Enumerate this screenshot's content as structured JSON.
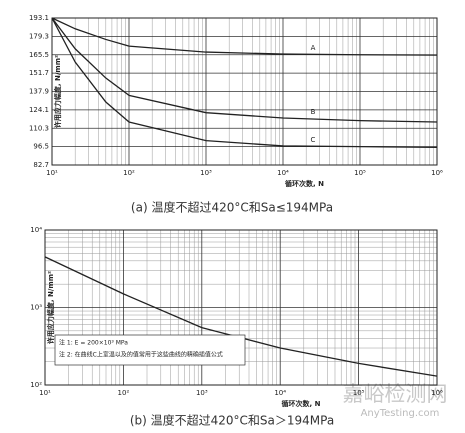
{
  "chart_data": [
    {
      "type": "line",
      "caption": "(a) 温度不超过420°C和Sa≤194MPa",
      "x_label": "循环次数, N",
      "y_label": "许用应力幅度, N/mm²",
      "x": [
        10,
        20,
        50,
        100,
        1000,
        10000,
        100000,
        1000000
      ],
      "series": [
        {
          "name": "A",
          "color": "#222222",
          "values": [
            193.1,
            185,
            177,
            172,
            167.5,
            166,
            165.5,
            165.2
          ]
        },
        {
          "name": "B",
          "color": "#222222",
          "values": [
            193.1,
            170,
            148,
            135,
            122,
            118,
            116,
            115
          ]
        },
        {
          "name": "C",
          "color": "#222222",
          "values": [
            193.1,
            160,
            130,
            115,
            101,
            97,
            96.5,
            96
          ]
        }
      ],
      "xlim": [
        10,
        1000000
      ],
      "xlog": true,
      "xticks": [
        {
          "value": 10,
          "label": "10¹"
        },
        {
          "value": 100,
          "label": "10²"
        },
        {
          "value": 1000,
          "label": "10³"
        },
        {
          "value": 10000,
          "label": "10⁴"
        },
        {
          "value": 100000,
          "label": "10⁵"
        },
        {
          "value": 1000000,
          "label": "10⁶"
        }
      ],
      "ylim": [
        82.7,
        193.1
      ],
      "yticks": [
        82.7,
        96.5,
        110.3,
        124.1,
        137.9,
        151.7,
        165.5,
        179.3,
        193.1
      ],
      "grid": true
    },
    {
      "type": "line",
      "caption": "(b) 温度不超过420°C和Sa＞194MPa",
      "x_label": "循环次数, N",
      "y_label": "许用应力幅度, N/mm²",
      "x": [
        10,
        100,
        1000,
        10000,
        100000,
        1000000
      ],
      "series": [
        {
          "color": "#222222",
          "values": [
            4500,
            1500,
            550,
            300,
            190,
            130
          ]
        }
      ],
      "xlim": [
        10,
        1000000
      ],
      "xlog": true,
      "xticks": [
        {
          "value": 10,
          "label": "10¹"
        },
        {
          "value": 100,
          "label": "10²"
        },
        {
          "value": 1000,
          "label": "10³"
        },
        {
          "value": 10000,
          "label": "10⁴"
        },
        {
          "value": 100000,
          "label": "10⁵"
        },
        {
          "value": 1000000,
          "label": "10⁶"
        }
      ],
      "ylim": [
        100,
        10000
      ],
      "ylog": true,
      "yticks": [
        {
          "value": 100,
          "label": "10²"
        },
        {
          "value": 1000,
          "label": "10³"
        },
        {
          "value": 10000,
          "label": "10⁴"
        }
      ],
      "grid": true,
      "notes": [
        "注 1: E = 200×10³ MPa",
        "注 2: 在曲线C上室温以及的值常用于这些曲线的精确插值公式"
      ]
    }
  ],
  "watermark": [
    "嘉峪检测网",
    "AnyTesting.com"
  ]
}
